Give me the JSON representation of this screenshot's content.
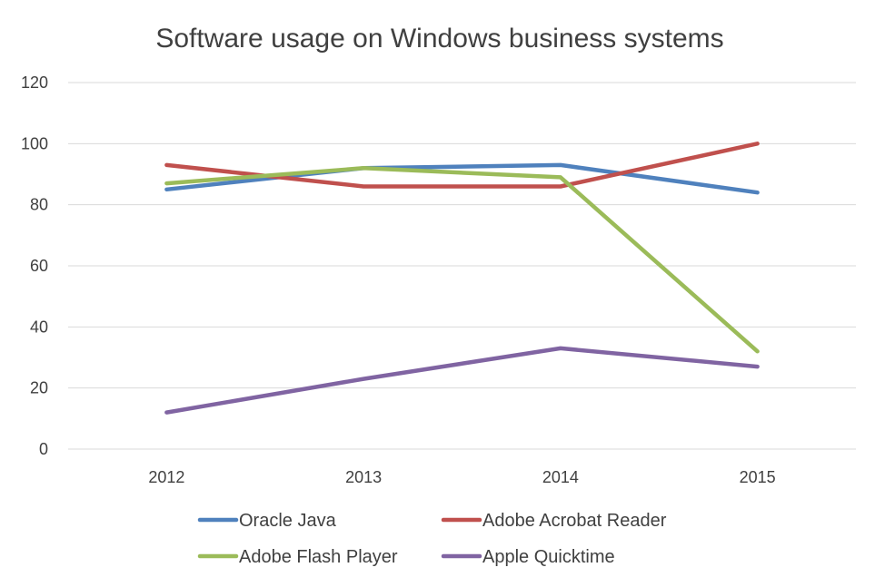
{
  "chart_data": {
    "type": "line",
    "title": "Software usage on Windows business systems",
    "xlabel": "",
    "ylabel": "",
    "categories": [
      "2012",
      "2013",
      "2014",
      "2015"
    ],
    "ylim": [
      0,
      120
    ],
    "yticks": [
      0,
      20,
      40,
      60,
      80,
      100,
      120
    ],
    "grid": true,
    "legend_position": "bottom",
    "series": [
      {
        "name": "Oracle Java",
        "color": "#4f81bd",
        "values": [
          85,
          92,
          93,
          84
        ]
      },
      {
        "name": "Adobe Acrobat Reader",
        "color": "#c0504d",
        "values": [
          93,
          86,
          86,
          100
        ]
      },
      {
        "name": "Adobe Flash Player",
        "color": "#9bbb59",
        "values": [
          87,
          92,
          89,
          32
        ]
      },
      {
        "name": "Apple Quicktime",
        "color": "#8064a2",
        "values": [
          12,
          23,
          33,
          27
        ]
      }
    ]
  }
}
